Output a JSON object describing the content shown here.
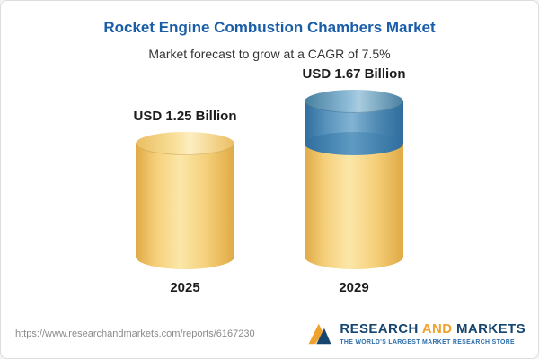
{
  "header": {
    "title": "Rocket Engine Combustion Chambers Market",
    "subtitle": "Market forecast to grow at a CAGR of 7.5%"
  },
  "chart_data": {
    "type": "bar",
    "categories": [
      "2025",
      "2029"
    ],
    "values": [
      1.25,
      1.67
    ],
    "value_labels": [
      "USD 1.25 Billion",
      "USD 1.67 Billion"
    ],
    "title": "Rocket Engine Combustion Chambers Market",
    "subtitle": "Market forecast to grow at a CAGR of 7.5%",
    "unit": "USD Billion",
    "cagr": "7.5%",
    "colors": {
      "base_bar": "#F5CF79",
      "growth_segment": "#4C88B2",
      "title": "#1A5DA8"
    },
    "legend_position": "none",
    "grid": false
  },
  "footer": {
    "url": "https://www.researchandmarkets.com/reports/6167230",
    "logo": {
      "word1": "RESEARCH",
      "word2": "AND",
      "word3": "MARKETS",
      "tagline": "THE WORLD'S LARGEST MARKET RESEARCH STORE"
    }
  }
}
